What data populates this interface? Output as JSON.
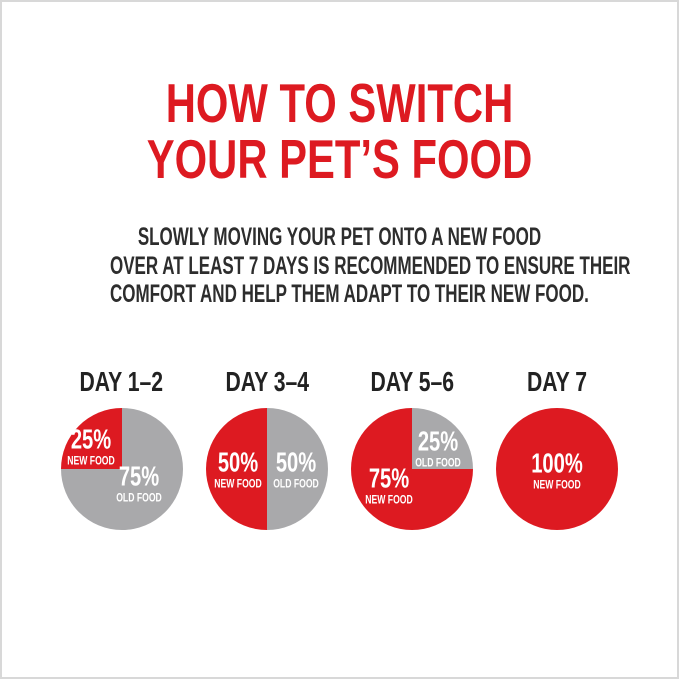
{
  "page": {
    "background": "#FFFFFF",
    "frame_color": "#D8D8D8"
  },
  "title": {
    "line1": "HOW TO SWITCH",
    "line2": "YOUR PET’S FOOD",
    "color": "#DD1A21"
  },
  "intro": {
    "lines": [
      "SLOWLY MOVING YOUR PET ONTO A NEW FOOD",
      "OVER AT LEAST 7 DAYS IS RECOMMENDED TO ENSURE THEIR",
      "COMFORT AND HELP THEM ADAPT TO THEIR NEW FOOD."
    ],
    "color": "#2D2D2D"
  },
  "chart_data": {
    "type": "pie",
    "title": "HOW TO SWITCH YOUR PET’S FOOD",
    "legend_position": "none",
    "grid": false,
    "colors": {
      "NEW FOOD": "#DD1A21",
      "OLD FOOD": "#A9A9AB",
      "slice_label_text": "#FFFFFF",
      "day_label_text": "#222222"
    },
    "pies": [
      {
        "label": "DAY 1–2",
        "start_deg": 270,
        "slices": [
          {
            "name": "NEW FOOD",
            "value": 25,
            "pct_label": "25%",
            "color": "#DD1A21"
          },
          {
            "name": "OLD FOOD",
            "value": 75,
            "pct_label": "75%",
            "color": "#A9A9AB"
          }
        ]
      },
      {
        "label": "DAY 3–4",
        "start_deg": 180,
        "slices": [
          {
            "name": "NEW FOOD",
            "value": 50,
            "pct_label": "50%",
            "color": "#DD1A21"
          },
          {
            "name": "OLD FOOD",
            "value": 50,
            "pct_label": "50%",
            "color": "#A9A9AB"
          }
        ]
      },
      {
        "label": "DAY 5–6",
        "start_deg": 0,
        "slices": [
          {
            "name": "OLD FOOD",
            "value": 25,
            "pct_label": "25%",
            "color": "#A9A9AB"
          },
          {
            "name": "NEW FOOD",
            "value": 75,
            "pct_label": "75%",
            "color": "#DD1A21"
          }
        ]
      },
      {
        "label": "DAY 7",
        "start_deg": 0,
        "slices": [
          {
            "name": "NEW FOOD",
            "value": 100,
            "pct_label": "100%",
            "color": "#DD1A21"
          }
        ]
      }
    ]
  }
}
